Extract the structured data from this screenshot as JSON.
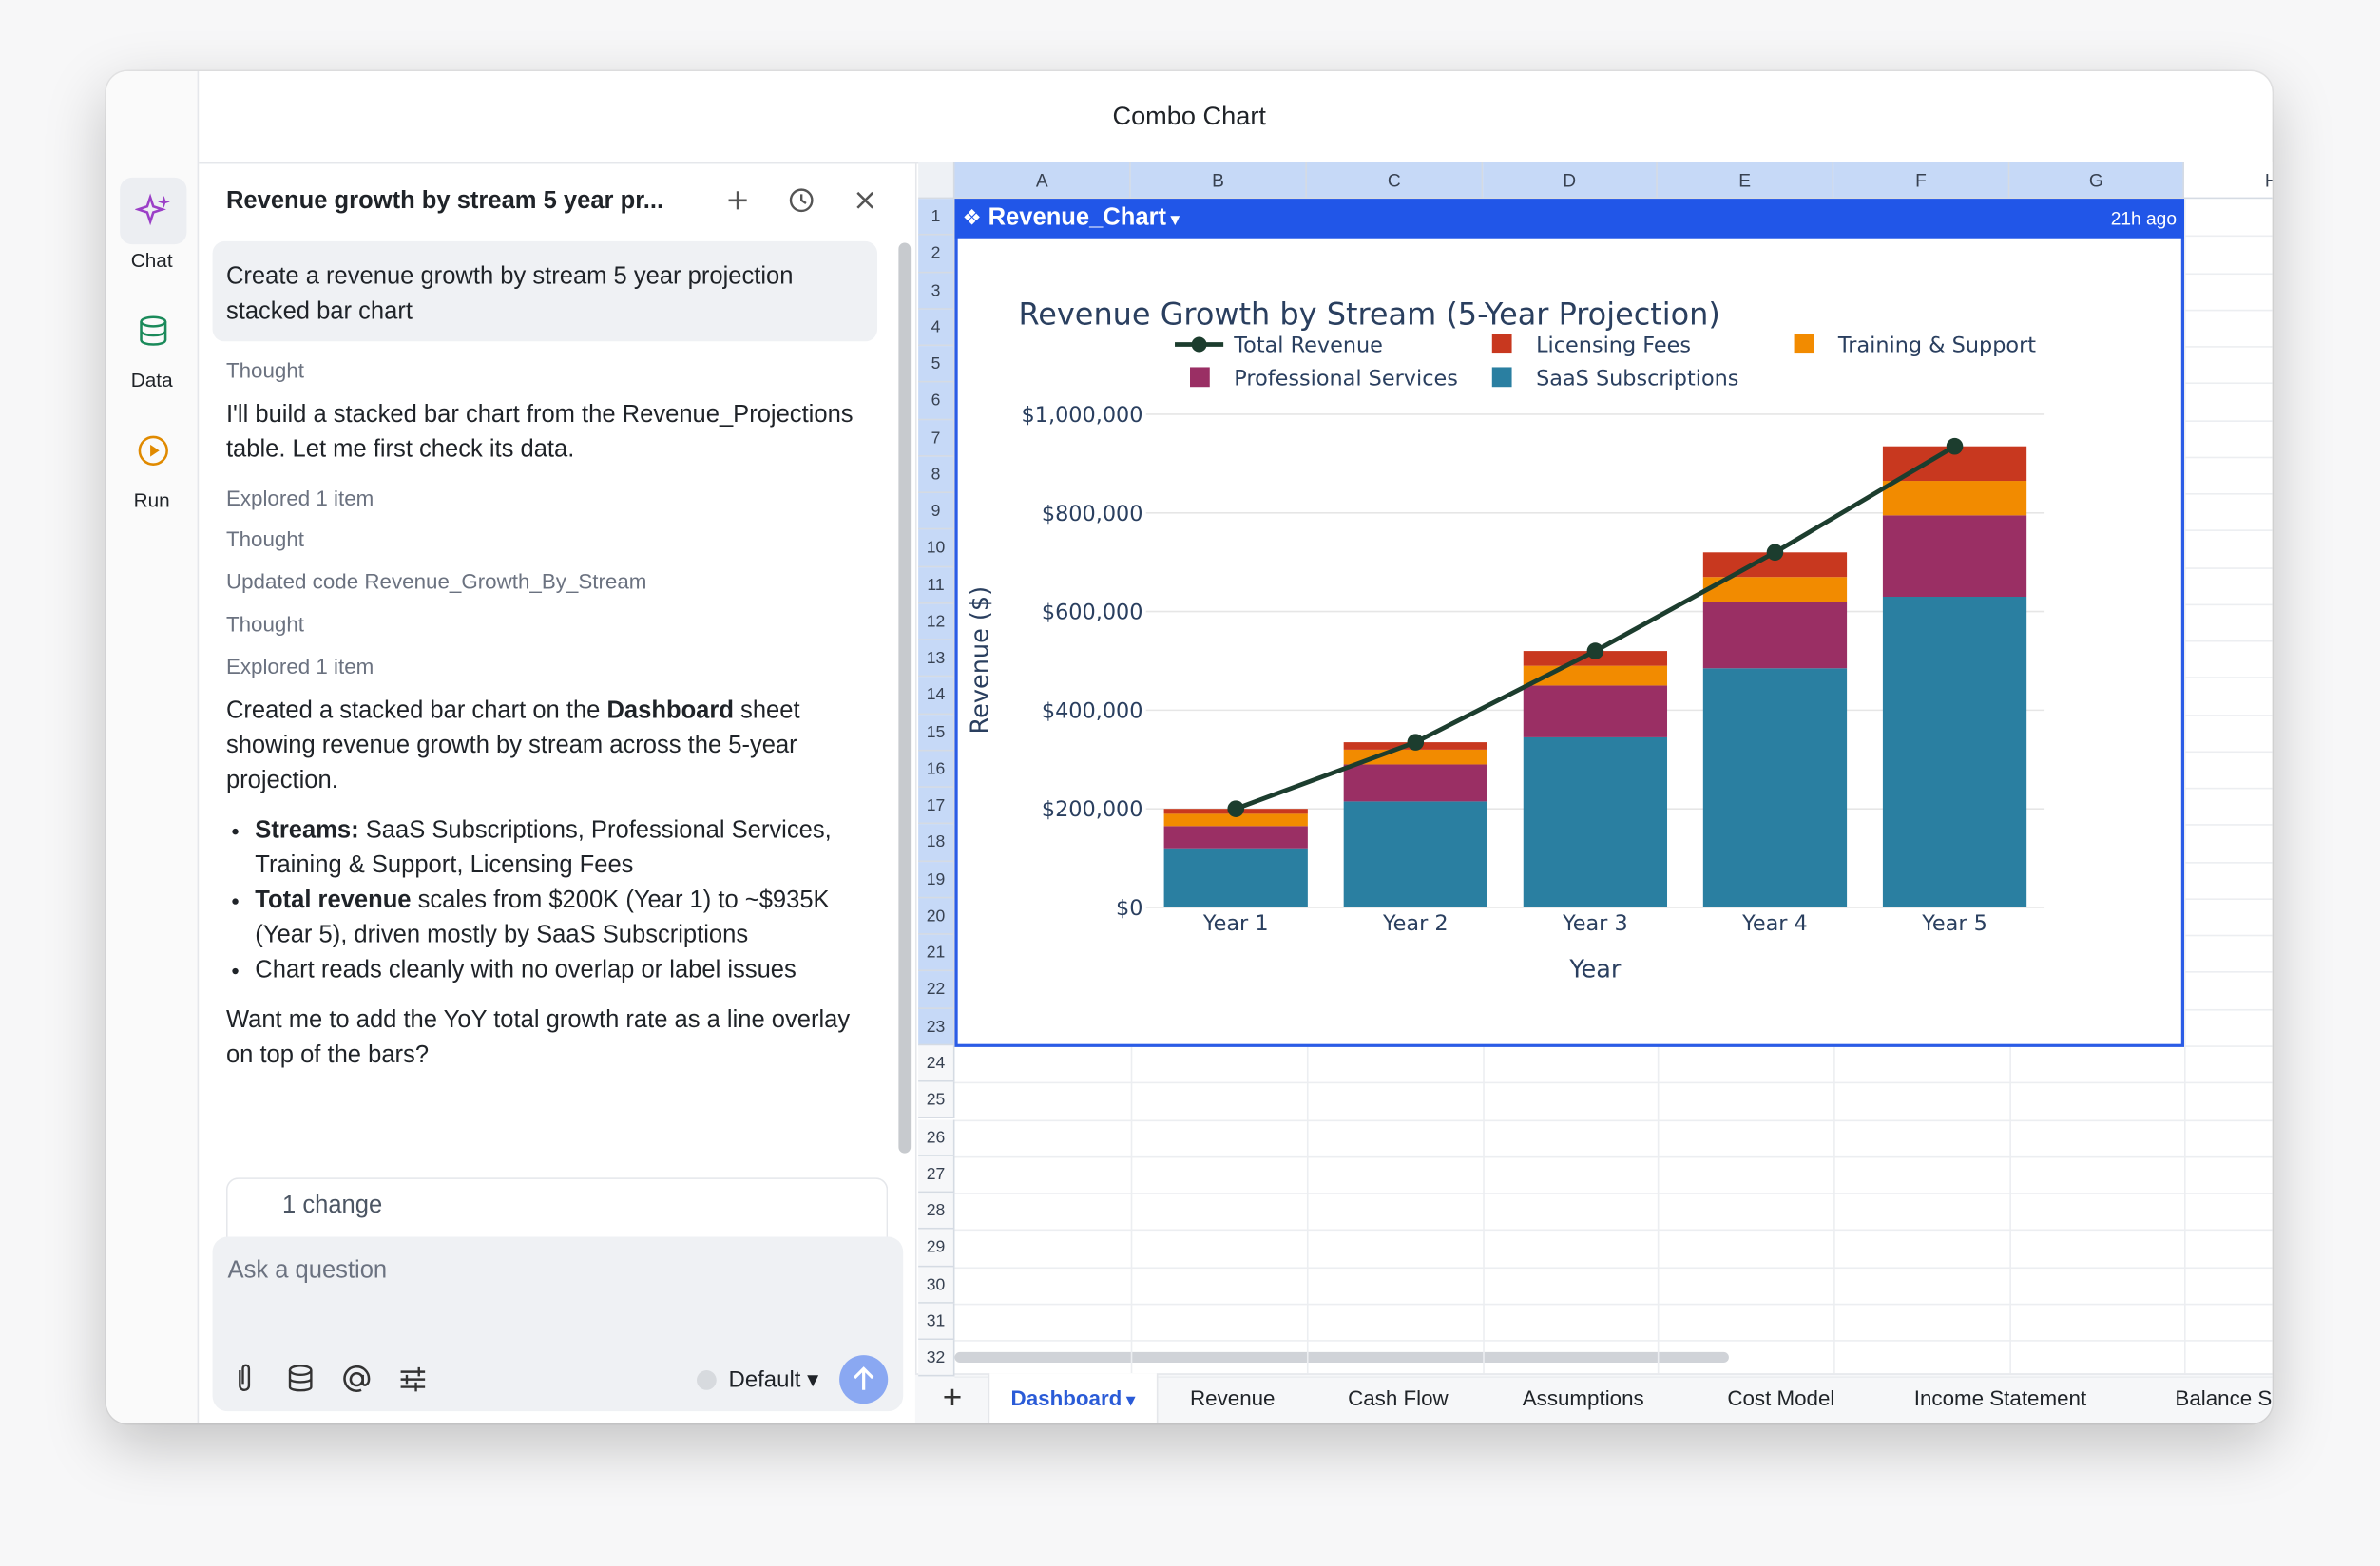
{
  "window": {
    "title": "Combo Chart"
  },
  "sidebar": {
    "items": [
      {
        "label": "Chat"
      },
      {
        "label": "Data"
      },
      {
        "label": "Run"
      }
    ]
  },
  "chat": {
    "header": "Revenue growth by stream 5 year pr...",
    "user_message": "Create a revenue growth by stream 5 year projection stacked bar chart",
    "thought_1": "Thought",
    "message_1": "I'll build a stacked bar chart from the Revenue_Projections table. Let me first check its data.",
    "step_1": "Explored 1 item",
    "thought_2": "Thought",
    "step_2_prefix": "Updated code",
    "step_2_file": "Revenue_Growth_By_Stream",
    "thought_3": "Thought",
    "step_3": "Explored 1 item",
    "summary": [
      {
        "text": "Created a stacked bar chart on the "
      },
      {
        "bold": "Dashboard"
      },
      {
        "text": " sheet showing revenue growth by stream across the 5-year projection."
      }
    ],
    "bullets": [
      {
        "bold": "Streams:",
        "text": " SaaS Subscriptions, Professional Services, Training & Support, Licensing Fees"
      },
      {
        "bold": "Total revenue",
        "text": " scales from $200K (Year 1) to ~$935K (Year 5), driven mostly by SaaS Subscriptions"
      },
      {
        "text": "Chart reads cleanly with no overlap or label issues"
      }
    ],
    "question": "Want me to add the YoY total growth rate as a line overlay on top of the bars?",
    "changes": "1 change",
    "input_placeholder": "Ask a question",
    "model": "Default"
  },
  "sheet": {
    "columns": [
      "A",
      "B",
      "C",
      "D",
      "E",
      "F",
      "G",
      "H"
    ],
    "row_numbers": [
      1,
      2,
      3,
      4,
      5,
      6,
      7,
      8,
      9,
      10,
      11,
      12,
      13,
      14,
      15,
      16,
      17,
      18,
      19,
      20,
      21,
      22,
      23,
      24,
      25,
      26,
      27,
      28,
      29,
      30,
      31,
      32
    ],
    "object_name": "Revenue_Chart",
    "updated": "21h ago",
    "tabs": [
      "Dashboard",
      "Revenue",
      "Cash Flow",
      "Assumptions",
      "Cost Model",
      "Income Statement",
      "Balance Sheet"
    ],
    "active_tab": 0
  },
  "chart_data": {
    "type": "bar",
    "stacked": true,
    "title": "Revenue Growth by Stream (5-Year Projection)",
    "x_label": "Year",
    "y_label": "Revenue ($)",
    "categories": [
      "Year 1",
      "Year 2",
      "Year 3",
      "Year 4",
      "Year 5"
    ],
    "series": [
      {
        "name": "SaaS Subscriptions",
        "color": "#2a7fa1",
        "values": [
          120000,
          215000,
          345000,
          485000,
          630000
        ]
      },
      {
        "name": "Professional Services",
        "color": "#9a2f64",
        "values": [
          45000,
          75000,
          105000,
          135000,
          165000
        ]
      },
      {
        "name": "Training & Support",
        "color": "#f28b00",
        "values": [
          25000,
          30000,
          40000,
          50000,
          70000
        ]
      },
      {
        "name": "Licensing Fees",
        "color": "#c8381f",
        "values": [
          10000,
          15000,
          30000,
          50000,
          70000
        ]
      },
      {
        "name": "Total Revenue",
        "type": "line",
        "color": "#1c3d2e",
        "values": [
          200000,
          335000,
          520000,
          720000,
          935000
        ]
      }
    ],
    "ylim": [
      0,
      1000000
    ],
    "yticks": [
      {
        "value": 0,
        "label": "$0"
      },
      {
        "value": 200000,
        "label": "$200,000"
      },
      {
        "value": 400000,
        "label": "$400,000"
      },
      {
        "value": 600000,
        "label": "$600,000"
      },
      {
        "value": 800000,
        "label": "$800,000"
      },
      {
        "value": 1000000,
        "label": "$1,000,000"
      }
    ],
    "grid": true
  }
}
